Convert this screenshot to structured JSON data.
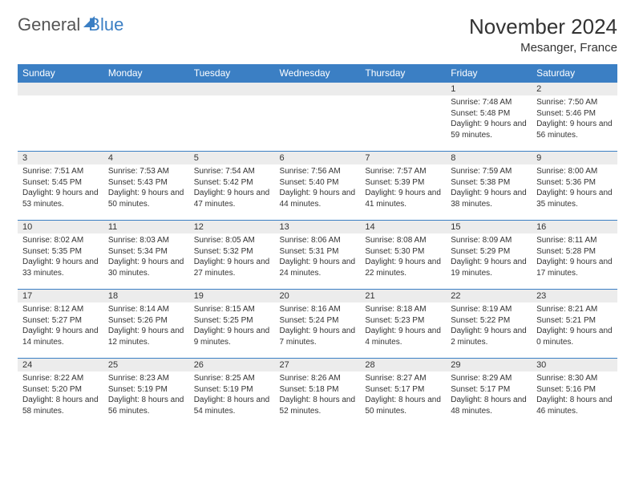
{
  "logo": {
    "word1": "General",
    "word2": "Blue"
  },
  "title": "November 2024",
  "location": "Mesanger, France",
  "colors": {
    "header_bg": "#3b7fc4",
    "daynum_bg": "#ececec",
    "border": "#3b7fc4"
  },
  "weekdays": [
    "Sunday",
    "Monday",
    "Tuesday",
    "Wednesday",
    "Thursday",
    "Friday",
    "Saturday"
  ],
  "weeks": [
    [
      null,
      null,
      null,
      null,
      null,
      {
        "n": "1",
        "sr": "7:48 AM",
        "ss": "5:48 PM",
        "dl": "9 hours and 59 minutes."
      },
      {
        "n": "2",
        "sr": "7:50 AM",
        "ss": "5:46 PM",
        "dl": "9 hours and 56 minutes."
      }
    ],
    [
      {
        "n": "3",
        "sr": "7:51 AM",
        "ss": "5:45 PM",
        "dl": "9 hours and 53 minutes."
      },
      {
        "n": "4",
        "sr": "7:53 AM",
        "ss": "5:43 PM",
        "dl": "9 hours and 50 minutes."
      },
      {
        "n": "5",
        "sr": "7:54 AM",
        "ss": "5:42 PM",
        "dl": "9 hours and 47 minutes."
      },
      {
        "n": "6",
        "sr": "7:56 AM",
        "ss": "5:40 PM",
        "dl": "9 hours and 44 minutes."
      },
      {
        "n": "7",
        "sr": "7:57 AM",
        "ss": "5:39 PM",
        "dl": "9 hours and 41 minutes."
      },
      {
        "n": "8",
        "sr": "7:59 AM",
        "ss": "5:38 PM",
        "dl": "9 hours and 38 minutes."
      },
      {
        "n": "9",
        "sr": "8:00 AM",
        "ss": "5:36 PM",
        "dl": "9 hours and 35 minutes."
      }
    ],
    [
      {
        "n": "10",
        "sr": "8:02 AM",
        "ss": "5:35 PM",
        "dl": "9 hours and 33 minutes."
      },
      {
        "n": "11",
        "sr": "8:03 AM",
        "ss": "5:34 PM",
        "dl": "9 hours and 30 minutes."
      },
      {
        "n": "12",
        "sr": "8:05 AM",
        "ss": "5:32 PM",
        "dl": "9 hours and 27 minutes."
      },
      {
        "n": "13",
        "sr": "8:06 AM",
        "ss": "5:31 PM",
        "dl": "9 hours and 24 minutes."
      },
      {
        "n": "14",
        "sr": "8:08 AM",
        "ss": "5:30 PM",
        "dl": "9 hours and 22 minutes."
      },
      {
        "n": "15",
        "sr": "8:09 AM",
        "ss": "5:29 PM",
        "dl": "9 hours and 19 minutes."
      },
      {
        "n": "16",
        "sr": "8:11 AM",
        "ss": "5:28 PM",
        "dl": "9 hours and 17 minutes."
      }
    ],
    [
      {
        "n": "17",
        "sr": "8:12 AM",
        "ss": "5:27 PM",
        "dl": "9 hours and 14 minutes."
      },
      {
        "n": "18",
        "sr": "8:14 AM",
        "ss": "5:26 PM",
        "dl": "9 hours and 12 minutes."
      },
      {
        "n": "19",
        "sr": "8:15 AM",
        "ss": "5:25 PM",
        "dl": "9 hours and 9 minutes."
      },
      {
        "n": "20",
        "sr": "8:16 AM",
        "ss": "5:24 PM",
        "dl": "9 hours and 7 minutes."
      },
      {
        "n": "21",
        "sr": "8:18 AM",
        "ss": "5:23 PM",
        "dl": "9 hours and 4 minutes."
      },
      {
        "n": "22",
        "sr": "8:19 AM",
        "ss": "5:22 PM",
        "dl": "9 hours and 2 minutes."
      },
      {
        "n": "23",
        "sr": "8:21 AM",
        "ss": "5:21 PM",
        "dl": "9 hours and 0 minutes."
      }
    ],
    [
      {
        "n": "24",
        "sr": "8:22 AM",
        "ss": "5:20 PM",
        "dl": "8 hours and 58 minutes."
      },
      {
        "n": "25",
        "sr": "8:23 AM",
        "ss": "5:19 PM",
        "dl": "8 hours and 56 minutes."
      },
      {
        "n": "26",
        "sr": "8:25 AM",
        "ss": "5:19 PM",
        "dl": "8 hours and 54 minutes."
      },
      {
        "n": "27",
        "sr": "8:26 AM",
        "ss": "5:18 PM",
        "dl": "8 hours and 52 minutes."
      },
      {
        "n": "28",
        "sr": "8:27 AM",
        "ss": "5:17 PM",
        "dl": "8 hours and 50 minutes."
      },
      {
        "n": "29",
        "sr": "8:29 AM",
        "ss": "5:17 PM",
        "dl": "8 hours and 48 minutes."
      },
      {
        "n": "30",
        "sr": "8:30 AM",
        "ss": "5:16 PM",
        "dl": "8 hours and 46 minutes."
      }
    ]
  ],
  "labels": {
    "sunrise": "Sunrise:",
    "sunset": "Sunset:",
    "daylight": "Daylight:"
  }
}
